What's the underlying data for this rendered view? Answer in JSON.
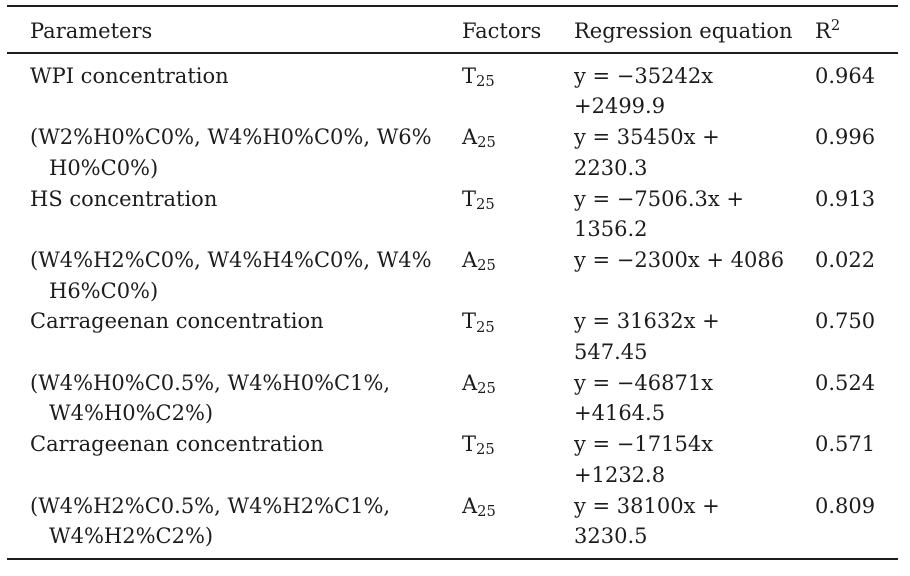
{
  "colors": {
    "ink": "#1c1c1c",
    "rule": "#1c1c1c",
    "background": "#ffffff"
  },
  "table": {
    "columns": [
      {
        "label": "Parameters"
      },
      {
        "label": "Factors"
      },
      {
        "label": "Regression equation"
      },
      {
        "base": "R",
        "sup": "2"
      }
    ],
    "rows": [
      {
        "parameter_lines": [
          "WPI concentration"
        ],
        "factor": {
          "base": "T",
          "sub": "25"
        },
        "equation_lines": [
          "y = −35242x",
          "+2499.9"
        ],
        "r2": "0.964"
      },
      {
        "parameter_lines": [
          "(W2%H0%C0%, W4%H0%C0%, W6%",
          "H0%C0%)"
        ],
        "factor": {
          "base": "A",
          "sub": "25"
        },
        "equation_lines": [
          "y = 35450x +",
          "2230.3"
        ],
        "r2": "0.996"
      },
      {
        "parameter_lines": [
          "HS concentration"
        ],
        "factor": {
          "base": "T",
          "sub": "25"
        },
        "equation_lines": [
          "y = −7506.3x +",
          "1356.2"
        ],
        "r2": "0.913"
      },
      {
        "parameter_lines": [
          "(W4%H2%C0%, W4%H4%C0%, W4%",
          "H6%C0%)"
        ],
        "factor": {
          "base": "A",
          "sub": "25"
        },
        "equation_lines": [
          "y = −2300x + 4086"
        ],
        "r2": "0.022"
      },
      {
        "parameter_lines": [
          "Carrageenan concentration"
        ],
        "factor": {
          "base": "T",
          "sub": "25"
        },
        "equation_lines": [
          "y = 31632x +",
          "547.45"
        ],
        "r2": "0.750"
      },
      {
        "parameter_lines": [
          "(W4%H0%C0.5%, W4%H0%C1%,",
          "W4%H0%C2%)"
        ],
        "factor": {
          "base": "A",
          "sub": "25"
        },
        "equation_lines": [
          "y = −46871x",
          "+4164.5"
        ],
        "r2": "0.524"
      },
      {
        "parameter_lines": [
          "Carrageenan concentration"
        ],
        "factor": {
          "base": "T",
          "sub": "25"
        },
        "equation_lines": [
          "y = −17154x",
          "+1232.8"
        ],
        "r2": "0.571"
      },
      {
        "parameter_lines": [
          "(W4%H2%C0.5%, W4%H2%C1%,",
          "W4%H2%C2%)"
        ],
        "factor": {
          "base": "A",
          "sub": "25"
        },
        "equation_lines": [
          "y = 38100x +",
          "3230.5"
        ],
        "r2": "0.809"
      }
    ]
  }
}
